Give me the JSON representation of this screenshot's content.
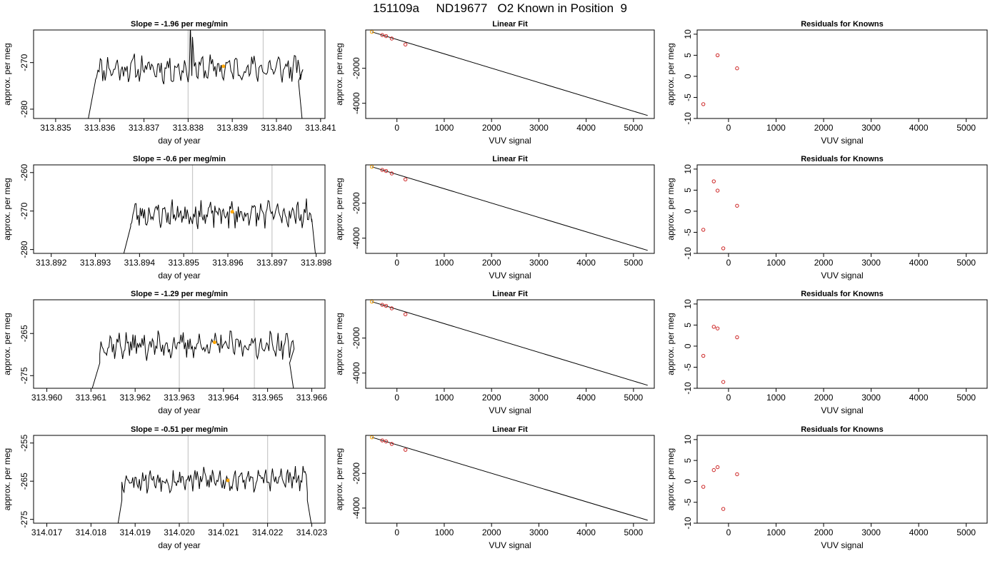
{
  "page": {
    "title": "151109a     ND19677   O2 Known in Position  9"
  },
  "colors": {
    "trace": "#000000",
    "frame": "#000000",
    "vline": "#c8c8c8",
    "highlight": "#ffa500",
    "known_point": "#cd2626",
    "fit_point": "#cd2626"
  },
  "chart_data": [
    {
      "type": "line",
      "title": "Slope =  -1.96  per meg/min",
      "xlabel": "day of year",
      "ylabel": "approx. per meg",
      "xlim": [
        313.8345,
        313.8411
      ],
      "ylim": [
        -282,
        -263
      ],
      "xticks": [
        "313.835",
        "313.836",
        "313.837",
        "313.838",
        "313.839",
        "313.840",
        "313.841"
      ],
      "xtick_values": [
        313.835,
        313.836,
        313.837,
        313.838,
        313.839,
        313.84,
        313.841
      ],
      "yticks": [
        -280,
        -270
      ],
      "vlines": [
        313.838,
        313.8397
      ],
      "highlight": {
        "x": 313.8388,
        "y": -270.8
      },
      "trace": {
        "x_start": 313.8359,
        "x_end": 313.8406,
        "base": -271.3,
        "amp": 2.2,
        "seed": 11,
        "head": [
          [
            313.8357,
            -284
          ],
          [
            313.8359,
            -274
          ]
        ],
        "tail": [
          [
            313.8405,
            -274
          ],
          [
            313.8406,
            -284
          ]
        ],
        "spikes": [
          [
            313.83805,
            -262
          ],
          [
            313.8381,
            -264.5
          ]
        ]
      }
    },
    {
      "type": "scatter",
      "title": "Linear Fit",
      "xlabel": "VUV signal",
      "ylabel": "approx. per meg",
      "xlim": [
        -660,
        5440
      ],
      "ylim": [
        -4870,
        190
      ],
      "xticks": [
        "0",
        "1000",
        "2000",
        "3000",
        "4000",
        "5000"
      ],
      "xtick_values": [
        0,
        1000,
        2000,
        3000,
        4000,
        5000
      ],
      "yticks": [
        "-2000",
        "-4000"
      ],
      "ytick_values": [
        -2000,
        -4000
      ],
      "points": [
        [
          -530,
          80
        ],
        [
          -310,
          -100
        ],
        [
          -230,
          -160
        ],
        [
          -110,
          -300
        ],
        [
          180,
          -640
        ]
      ],
      "fit_line": [
        [
          -530,
          80
        ],
        [
          5300,
          -4700
        ]
      ],
      "highlight_point": 0
    },
    {
      "type": "scatter",
      "title": "Residuals for Knowns",
      "xlabel": "VUV signal",
      "ylabel": "approx. per meg",
      "xlim": [
        -660,
        5440
      ],
      "ylim": [
        -10,
        11
      ],
      "xticks": [
        "0",
        "1000",
        "2000",
        "3000",
        "4000",
        "5000"
      ],
      "xtick_values": [
        0,
        1000,
        2000,
        3000,
        4000,
        5000
      ],
      "yticks": [
        "10",
        "5",
        "0",
        "-5",
        "-10"
      ],
      "ytick_values": [
        10,
        5,
        0,
        -5,
        -10
      ],
      "points": [
        [
          -530,
          -6.6
        ],
        [
          -230,
          5.0
        ],
        [
          180,
          1.9
        ]
      ]
    },
    {
      "type": "line",
      "title": "Slope =  -0.6  per meg/min",
      "xlabel": "day of year",
      "ylabel": "approx. per meg",
      "xlim": [
        313.8916,
        313.8982
      ],
      "ylim": [
        -281,
        -258
      ],
      "xticks": [
        "313.892",
        "313.893",
        "313.894",
        "313.895",
        "313.896",
        "313.897",
        "313.898"
      ],
      "xtick_values": [
        313.892,
        313.893,
        313.894,
        313.895,
        313.896,
        313.897,
        313.898
      ],
      "yticks": [
        -280,
        -270,
        -260
      ],
      "vlines": [
        313.8952,
        313.897
      ],
      "highlight": {
        "x": 313.8961,
        "y": -270.2
      },
      "trace": {
        "x_start": 313.8938,
        "x_end": 313.8979,
        "base": -270.8,
        "amp": 2.6,
        "seed": 23,
        "head": [
          [
            313.8936,
            -283
          ],
          [
            313.8938,
            -274
          ]
        ],
        "tail": [
          [
            313.8979,
            -272
          ],
          [
            313.898,
            -283
          ]
        ],
        "spikes": []
      }
    },
    {
      "type": "scatter",
      "title": "Linear Fit",
      "xlabel": "VUV signal",
      "ylabel": "approx. per meg",
      "xlim": [
        -660,
        5440
      ],
      "ylim": [
        -4870,
        190
      ],
      "xticks": [
        "0",
        "1000",
        "2000",
        "3000",
        "4000",
        "5000"
      ],
      "xtick_values": [
        0,
        1000,
        2000,
        3000,
        4000,
        5000
      ],
      "yticks": [
        "-2000",
        "-4000"
      ],
      "ytick_values": [
        -2000,
        -4000
      ],
      "points": [
        [
          -530,
          80
        ],
        [
          -310,
          -100
        ],
        [
          -230,
          -160
        ],
        [
          -110,
          -300
        ],
        [
          180,
          -640
        ]
      ],
      "fit_line": [
        [
          -530,
          80
        ],
        [
          5300,
          -4700
        ]
      ],
      "highlight_point": 0
    },
    {
      "type": "scatter",
      "title": "Residuals for Knowns",
      "xlabel": "VUV signal",
      "ylabel": "approx. per meg",
      "xlim": [
        -660,
        5440
      ],
      "ylim": [
        -10,
        11
      ],
      "xticks": [
        "0",
        "1000",
        "2000",
        "3000",
        "4000",
        "5000"
      ],
      "xtick_values": [
        0,
        1000,
        2000,
        3000,
        4000,
        5000
      ],
      "yticks": [
        "10",
        "5",
        "0",
        "-5",
        "-10"
      ],
      "ytick_values": [
        10,
        5,
        0,
        -5,
        -10
      ],
      "points": [
        [
          -530,
          -4.4
        ],
        [
          -310,
          7.1
        ],
        [
          -230,
          4.9
        ],
        [
          -110,
          -8.8
        ],
        [
          180,
          1.3
        ]
      ]
    },
    {
      "type": "line",
      "title": "Slope =  -1.29  per meg/min",
      "xlabel": "day of year",
      "ylabel": "approx. per meg",
      "xlim": [
        313.9597,
        313.9663
      ],
      "ylim": [
        -278,
        -257
      ],
      "xticks": [
        "313.960",
        "313.961",
        "313.962",
        "313.963",
        "313.964",
        "313.965",
        "313.966"
      ],
      "xtick_values": [
        313.96,
        313.961,
        313.962,
        313.963,
        313.964,
        313.965,
        313.966
      ],
      "yticks": [
        -275,
        -265
      ],
      "vlines": [
        313.963,
        313.9647
      ],
      "highlight": {
        "x": 313.9638,
        "y": -267.1
      },
      "trace": {
        "x_start": 313.9612,
        "x_end": 313.9656,
        "base": -267.8,
        "amp": 2.3,
        "seed": 37,
        "head": [
          [
            313.961,
            -279
          ],
          [
            313.9612,
            -272
          ]
        ],
        "tail": [
          [
            313.9655,
            -272
          ],
          [
            313.9656,
            -279
          ]
        ],
        "spikes": []
      }
    },
    {
      "type": "scatter",
      "title": "Linear Fit",
      "xlabel": "VUV signal",
      "ylabel": "approx. per meg",
      "xlim": [
        -660,
        5440
      ],
      "ylim": [
        -4870,
        190
      ],
      "xticks": [
        "0",
        "1000",
        "2000",
        "3000",
        "4000",
        "5000"
      ],
      "xtick_values": [
        0,
        1000,
        2000,
        3000,
        4000,
        5000
      ],
      "yticks": [
        "-2000",
        "-4000"
      ],
      "ytick_values": [
        -2000,
        -4000
      ],
      "points": [
        [
          -530,
          80
        ],
        [
          -310,
          -100
        ],
        [
          -230,
          -160
        ],
        [
          -110,
          -300
        ],
        [
          180,
          -640
        ]
      ],
      "fit_line": [
        [
          -530,
          80
        ],
        [
          5300,
          -4700
        ]
      ],
      "highlight_point": 0
    },
    {
      "type": "scatter",
      "title": "Residuals for Knowns",
      "xlabel": "VUV signal",
      "ylabel": "approx. per meg",
      "xlim": [
        -660,
        5440
      ],
      "ylim": [
        -10,
        11
      ],
      "xticks": [
        "0",
        "1000",
        "2000",
        "3000",
        "4000",
        "5000"
      ],
      "xtick_values": [
        0,
        1000,
        2000,
        3000,
        4000,
        5000
      ],
      "yticks": [
        "10",
        "5",
        "0",
        "-5",
        "-10"
      ],
      "ytick_values": [
        10,
        5,
        0,
        -5,
        -10
      ],
      "points": [
        [
          -530,
          -2.3
        ],
        [
          -310,
          4.6
        ],
        [
          -230,
          4.2
        ],
        [
          -110,
          -8.5
        ],
        [
          180,
          2.1
        ]
      ]
    },
    {
      "type": "line",
      "title": "Slope =  -0.51  per meg/min",
      "xlabel": "day of year",
      "ylabel": "approx. per meg",
      "xlim": [
        314.0167,
        314.0233
      ],
      "ylim": [
        -276,
        -253
      ],
      "xticks": [
        "314.017",
        "314.018",
        "314.019",
        "314.020",
        "314.021",
        "314.022",
        "314.023"
      ],
      "xtick_values": [
        314.017,
        314.018,
        314.019,
        314.02,
        314.021,
        314.022,
        314.023
      ],
      "yticks": [
        -275,
        -265,
        -255
      ],
      "vlines": [
        314.0202,
        314.022
      ],
      "highlight": {
        "x": 314.0211,
        "y": -264.8
      },
      "trace": {
        "x_start": 314.0187,
        "x_end": 314.0229,
        "base": -264.6,
        "amp": 2.4,
        "seed": 53,
        "head": [
          [
            314.0186,
            -277
          ],
          [
            314.0187,
            -270
          ]
        ],
        "tail": [
          [
            314.0229,
            -270
          ],
          [
            314.023,
            -277
          ]
        ],
        "spikes": []
      }
    },
    {
      "type": "scatter",
      "title": "Linear Fit",
      "xlabel": "VUV signal",
      "ylabel": "approx. per meg",
      "xlim": [
        -660,
        5440
      ],
      "ylim": [
        -4870,
        190
      ],
      "xticks": [
        "0",
        "1000",
        "2000",
        "3000",
        "4000",
        "5000"
      ],
      "xtick_values": [
        0,
        1000,
        2000,
        3000,
        4000,
        5000
      ],
      "yticks": [
        "-2000",
        "-4000"
      ],
      "ytick_values": [
        -2000,
        -4000
      ],
      "points": [
        [
          -530,
          80
        ],
        [
          -310,
          -100
        ],
        [
          -230,
          -160
        ],
        [
          -110,
          -300
        ],
        [
          180,
          -640
        ]
      ],
      "fit_line": [
        [
          -530,
          80
        ],
        [
          5300,
          -4700
        ]
      ],
      "highlight_point": 0
    },
    {
      "type": "scatter",
      "title": "Residuals for Knowns",
      "xlabel": "VUV signal",
      "ylabel": "approx. per meg",
      "xlim": [
        -660,
        5440
      ],
      "ylim": [
        -10,
        11
      ],
      "xticks": [
        "0",
        "1000",
        "2000",
        "3000",
        "4000",
        "5000"
      ],
      "xtick_values": [
        0,
        1000,
        2000,
        3000,
        4000,
        5000
      ],
      "yticks": [
        "10",
        "5",
        "0",
        "-5",
        "-10"
      ],
      "ytick_values": [
        10,
        5,
        0,
        -5,
        -10
      ],
      "points": [
        [
          -530,
          -1.3
        ],
        [
          -310,
          2.7
        ],
        [
          -230,
          3.4
        ],
        [
          -110,
          -6.6
        ],
        [
          180,
          1.7
        ]
      ]
    }
  ]
}
